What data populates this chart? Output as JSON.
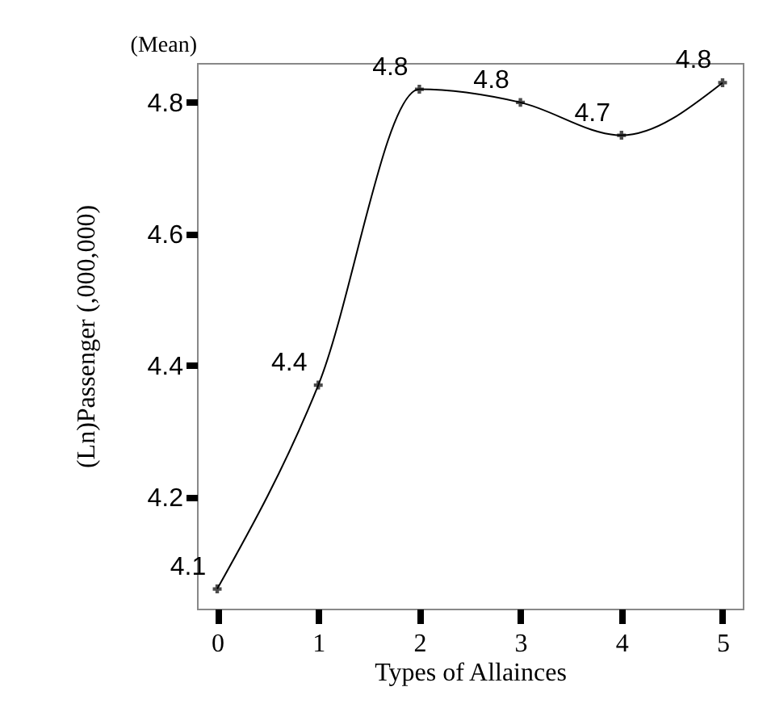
{
  "chart_data": {
    "type": "line",
    "xlabel": "Types of Allainces",
    "ylabel": "(Ln)Passenger (,000,000)",
    "annotations": [
      "(Mean)"
    ],
    "x": [
      0,
      1,
      2,
      3,
      4,
      5
    ],
    "series": [
      {
        "color": "#000000",
        "values": [
          4.06,
          4.37,
          4.82,
          4.8,
          4.75,
          4.83
        ],
        "value_labels": [
          "4.1",
          "4.4",
          "4.8",
          "4.8",
          "4.7",
          "4.8"
        ]
      }
    ],
    "xlim": [
      -0.2,
      5.2
    ],
    "xticks": [
      0,
      1,
      2,
      3,
      4,
      5
    ],
    "ylim": [
      4.03,
      4.86
    ],
    "yticks": [
      4.2,
      4.4,
      4.6,
      4.8
    ],
    "grid": false,
    "marker": "cross",
    "legend": false
  }
}
